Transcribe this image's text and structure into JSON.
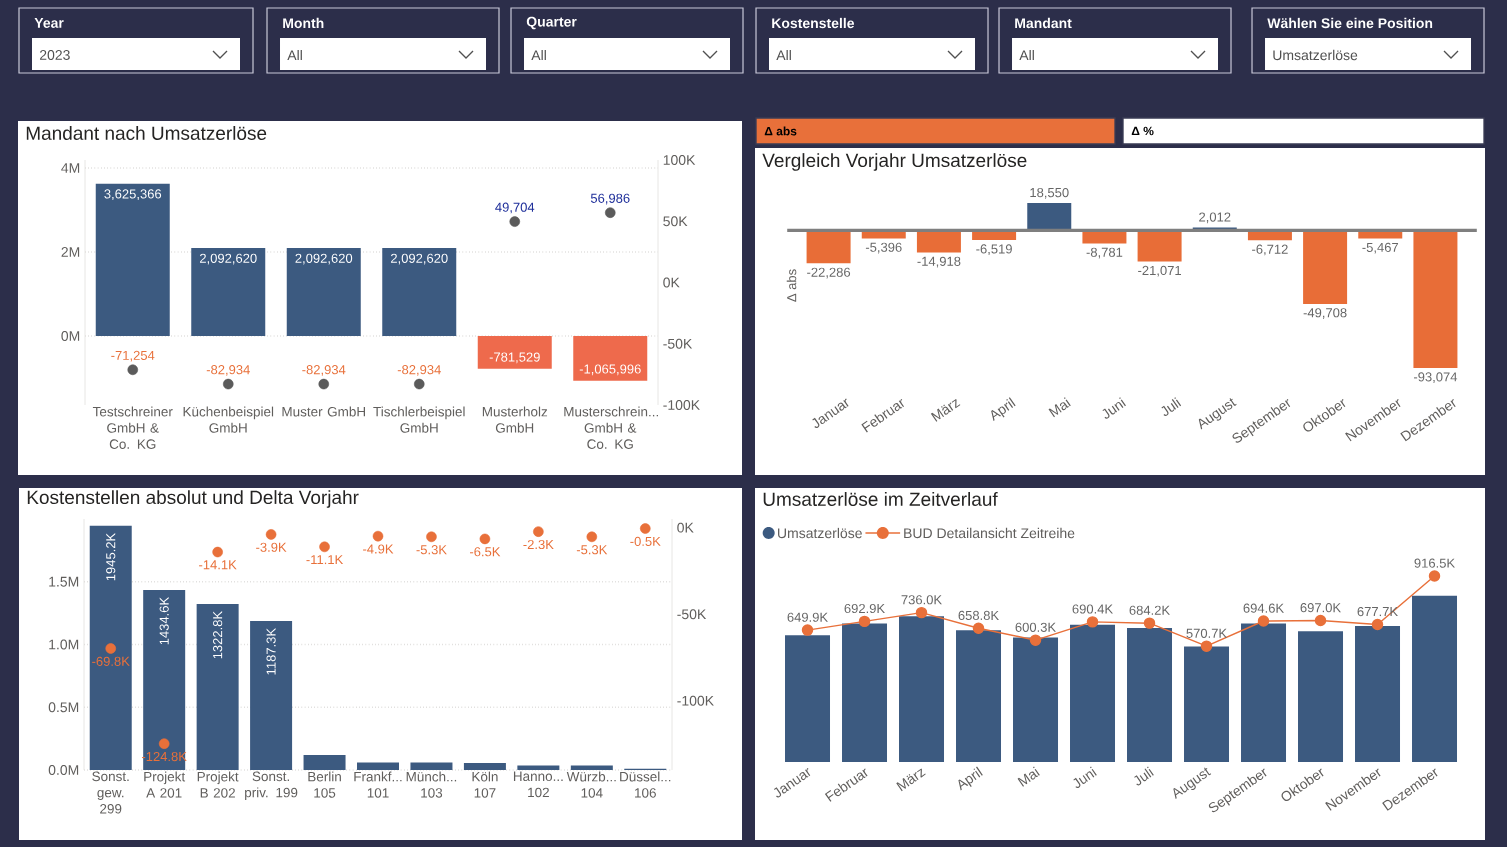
{
  "chart_data": [
    {
      "type": "other",
      "annotations": [
        "Year",
        "2023",
        "Month",
        "All",
        "Quarter",
        "All",
        "Kostenstelle",
        "All",
        "Mandant",
        "All",
        "Wählen Sie eine Position",
        "Umsatzerlöse"
      ]
    },
    {
      "type": "bar",
      "title": "Mandant nach Umsatzerlöse",
      "categories": [
        "Testschreiner GmbH & Co. KG",
        "Küchenbeispiel GmbH",
        "Muster GmbH",
        "Tischlerbeispiel GmbH",
        "Musterholz GmbH",
        "Musterschrein... GmbH & Co. KG"
      ],
      "series": [
        {
          "type": "bar",
          "colors": [
            "#3c5a80",
            "#3c5a80",
            "#3c5a80",
            "#3c5a80",
            "#ee6a4c",
            "#ee6a4c"
          ],
          "values": [
            3625366,
            2092620,
            2092620,
            2092620,
            -781529,
            -1065996
          ],
          "value_labels": [
            "3,625,366",
            "2,092,620",
            "2,092,620",
            "2,092,620",
            "-781,529",
            "-1,065,996"
          ]
        },
        {
          "type": "scatter",
          "axis": "y2",
          "color": "#5b5b5b",
          "marker": "circle",
          "values": [
            -71254,
            -82934,
            -82934,
            -82934,
            49704,
            56986
          ],
          "value_labels": [
            "-71,254",
            "-82,934",
            "-82,934",
            "-82,934",
            "49,704",
            "56,986"
          ]
        }
      ],
      "ylim": [
        -1643000,
        4190000
      ],
      "yticks": [
        {
          "value": 0,
          "label": "0M"
        },
        {
          "value": 2000000,
          "label": "2M"
        },
        {
          "value": 4000000,
          "label": "4M"
        }
      ],
      "y2lim": [
        -100000,
        100000
      ],
      "y2ticks": [
        {
          "value": 100000,
          "label": "100K"
        },
        {
          "value": 50000,
          "label": "50K"
        },
        {
          "value": 0,
          "label": "0K"
        },
        {
          "value": -50000,
          "label": "-50K"
        },
        {
          "value": -100000,
          "label": "-100K"
        }
      ],
      "grid": "y"
    },
    {
      "type": "other",
      "annotations": [
        "Δ abs",
        "Δ %"
      ]
    },
    {
      "type": "bar",
      "title": "Vergleich Vorjahr Umsatzerlöse",
      "ylabel": "Δ abs",
      "categories": [
        "Januar",
        "Februar",
        "März",
        "April",
        "Mai",
        "Juni",
        "Juli",
        "August",
        "September",
        "Oktober",
        "November",
        "Dezember"
      ],
      "values": [
        -22286,
        -5396,
        -14918,
        -6519,
        18550,
        -8781,
        -21071,
        2012,
        -6712,
        -49708,
        -5467,
        -93074
      ],
      "colors": [
        "#e86d37",
        "#e86d37",
        "#e86d37",
        "#e86d37",
        "#3c5a80",
        "#e86d37",
        "#e86d37",
        "#3c5a80",
        "#e86d37",
        "#e86d37",
        "#e86d37",
        "#e86d37"
      ],
      "value_labels": [
        "-22,286",
        "-5,396",
        "-14,918",
        "-6,519",
        "18,550",
        "-8,781",
        "-21,071",
        "2,012",
        "-6,712",
        "-49,708",
        "-5,467",
        "-93,074"
      ],
      "tick_labels": "x"
    },
    {
      "type": "bar",
      "title": "Kostenstellen absolut und Delta Vorjahr",
      "categories": [
        "Sonst. gew. 299",
        "Projekt A 201",
        "Projekt B 202",
        "Sonst. priv. 199",
        "Berlin 105",
        "Frankf... 101",
        "Münch... 103",
        "Köln 107",
        "Hanno... 102",
        "Würzb... 104",
        "Düssel... 106"
      ],
      "series": [
        {
          "type": "bar",
          "color": "#3c5a80",
          "values": [
            1945200,
            1434600,
            1322800,
            1187300,
            120000,
            60000,
            60000,
            55000,
            35000,
            35000,
            10000
          ],
          "value_labels": [
            "1945.2K",
            "1434.6K",
            "1322.8K",
            "1187.3K",
            null,
            null,
            null,
            null,
            null,
            null,
            null
          ]
        },
        {
          "type": "scatter",
          "axis": "y2",
          "color": "#e8703a",
          "marker": "circle",
          "values": [
            -69800,
            -124800,
            -14100,
            -3900,
            -11100,
            -4900,
            -5300,
            -6500,
            -2300,
            -5300,
            -500
          ],
          "value_labels": [
            "-69.8K",
            "-124.8K",
            "-14.1K",
            "-3.9K",
            "-11.1K",
            "-4.9K",
            "-5.3K",
            "-6.5K",
            "-2.3K",
            "-5.3K",
            "-0.5K"
          ]
        }
      ],
      "ylim": [
        0,
        2000000
      ],
      "yticks": [
        {
          "value": 0,
          "label": "0.0M"
        },
        {
          "value": 500000,
          "label": "0.5M"
        },
        {
          "value": 1000000,
          "label": "1.0M"
        },
        {
          "value": 1500000,
          "label": "1.5M"
        }
      ],
      "y2lim": [
        -140000,
        5000
      ],
      "y2ticks": [
        {
          "value": 0,
          "label": "0K"
        },
        {
          "value": -50000,
          "label": "-50K"
        },
        {
          "value": -100000,
          "label": "-100K"
        }
      ],
      "grid": "y"
    },
    {
      "type": "bar",
      "title": "Umsatzerlöse im Zeitverlauf",
      "categories": [
        "Januar",
        "Februar",
        "März",
        "April",
        "Mai",
        "Juni",
        "Juli",
        "August",
        "September",
        "Oktober",
        "November",
        "Dezember"
      ],
      "series": [
        {
          "type": "bar",
          "name": "Umsatzerlöse",
          "color": "#3c5a80",
          "values": [
            624000,
            683000,
            718000,
            649000,
            614000,
            676000,
            660000,
            569000,
            683000,
            644000,
            670000,
            819000
          ]
        },
        {
          "type": "line",
          "name": "BUD Detailansicht Zeitreihe",
          "color": "#e8703a",
          "marker": "circle",
          "values": [
            649900,
            692900,
            736000,
            658800,
            600300,
            690400,
            684200,
            570700,
            694600,
            697000,
            677700,
            916500
          ],
          "value_labels": [
            "649.9K",
            "692.9K",
            "736.0K",
            "658.8K",
            "600.3K",
            "690.4K",
            "684.2K",
            "570.7K",
            "694.6K",
            "697.0K",
            "677.7K",
            "916.5K"
          ]
        }
      ],
      "legend": "top left",
      "tick_labels": "x"
    }
  ]
}
